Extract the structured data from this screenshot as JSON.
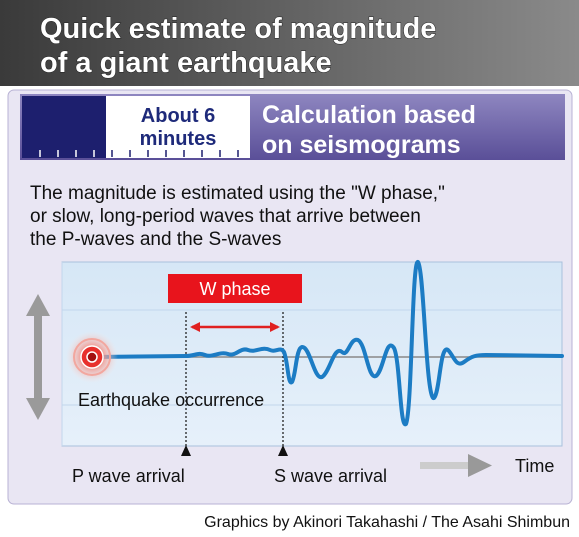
{
  "header": {
    "title_lines": [
      "Quick estimate of magnitude",
      "of a giant earthquake"
    ]
  },
  "section": {
    "time_badge": [
      "About 6",
      "minutes"
    ],
    "heading": [
      "Calculation based",
      "on seismograms"
    ]
  },
  "description": [
    "The magnitude is estimated using the \"W phase,\"",
    "or slow, long-period waves that arrive between",
    "the P-waves and the S-waves"
  ],
  "diagram": {
    "w_phase_label": "W phase",
    "epicenter_label": "Earthquake occurrence",
    "p_wave_label": "P wave arrival",
    "s_wave_label": "S wave arrival",
    "time_axis_label": "Time"
  },
  "credit": "Graphics by Akinori Takahashi / The Asahi Shimbun"
}
